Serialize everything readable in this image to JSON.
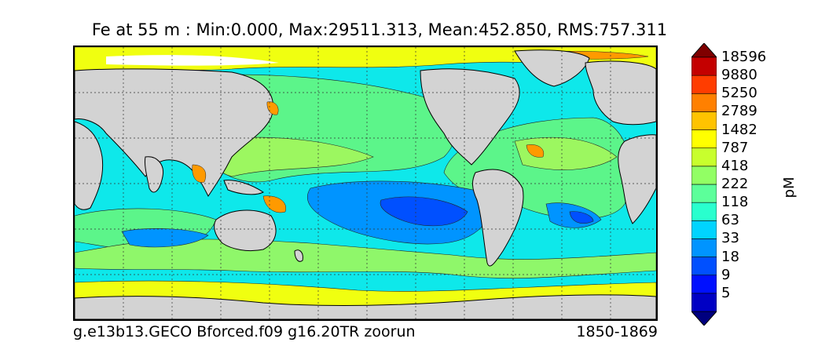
{
  "title": "Fe at 55 m : Min:0.000, Max:29511.313, Mean:452.850, RMS:757.311",
  "caption": {
    "run_name": "g.e13b13.GECO Bforced.f09 g16.20TR zoorun",
    "years": "1850-1869"
  },
  "colorbar": {
    "units": "pM",
    "extend": "both",
    "tick_labels": [
      "5",
      "9",
      "18",
      "33",
      "63",
      "118",
      "222",
      "418",
      "787",
      "1482",
      "2789",
      "5250",
      "9880",
      "18596"
    ],
    "colors": [
      "#00007f",
      "#0000c4",
      "#0010ff",
      "#0050ff",
      "#0094ff",
      "#00d4ff",
      "#29ffce",
      "#5cff9a",
      "#92ff64",
      "#c8ff2d",
      "#ffff00",
      "#ffc300",
      "#ff8000",
      "#ff3d00",
      "#c40000",
      "#7f0000"
    ]
  },
  "map": {
    "land_color": "#d3d3d3",
    "gridlines": true
  }
}
